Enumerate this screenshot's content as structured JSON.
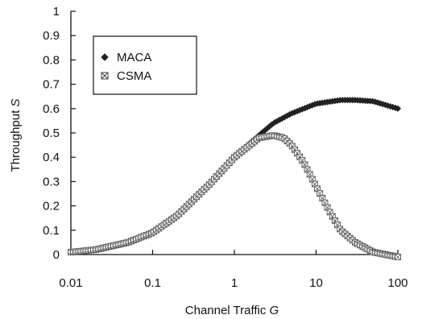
{
  "chart_data": {
    "type": "line",
    "xlabel": "Channel Traffic G",
    "xlabel_main": "Channel Traffic ",
    "xlabel_var": "G",
    "ylabel": "Throughput S",
    "ylabel_main": "Throughput ",
    "ylabel_var": "S",
    "x_scale": "log",
    "xlim": [
      0.01,
      100
    ],
    "ylim": [
      0,
      1
    ],
    "x_ticks": [
      0.01,
      0.1,
      1,
      10,
      100
    ],
    "x_tick_labels": [
      "0.01",
      "0.1",
      "1",
      "10",
      "100"
    ],
    "y_ticks": [
      0,
      0.1,
      0.2,
      0.3,
      0.4,
      0.5,
      0.6,
      0.7,
      0.8,
      0.9,
      1
    ],
    "y_tick_labels": [
      "0",
      "0.1",
      "0.2",
      "0.3",
      "0.4",
      "0.5",
      "0.6",
      "0.7",
      "0.8",
      "0.9",
      "1"
    ],
    "grid": false,
    "legend_position": "top-left",
    "series": [
      {
        "name": "MACA",
        "marker": "diamond",
        "color": "#222222",
        "x": [
          0.01,
          0.02,
          0.05,
          0.1,
          0.2,
          0.5,
          1,
          2,
          3,
          5,
          10,
          20,
          30,
          50,
          100
        ],
        "y": [
          0.01,
          0.02,
          0.05,
          0.09,
          0.16,
          0.29,
          0.4,
          0.49,
          0.54,
          0.58,
          0.62,
          0.635,
          0.635,
          0.63,
          0.6
        ]
      },
      {
        "name": "CSMA",
        "marker": "x-square",
        "color": "#555555",
        "x": [
          0.01,
          0.02,
          0.05,
          0.1,
          0.2,
          0.5,
          1,
          2,
          3,
          4,
          5,
          7,
          10,
          15,
          20,
          30,
          50,
          100
        ],
        "y": [
          0.01,
          0.02,
          0.05,
          0.09,
          0.16,
          0.29,
          0.4,
          0.48,
          0.49,
          0.48,
          0.45,
          0.38,
          0.28,
          0.17,
          0.1,
          0.05,
          0.01,
          -0.01
        ]
      }
    ]
  }
}
